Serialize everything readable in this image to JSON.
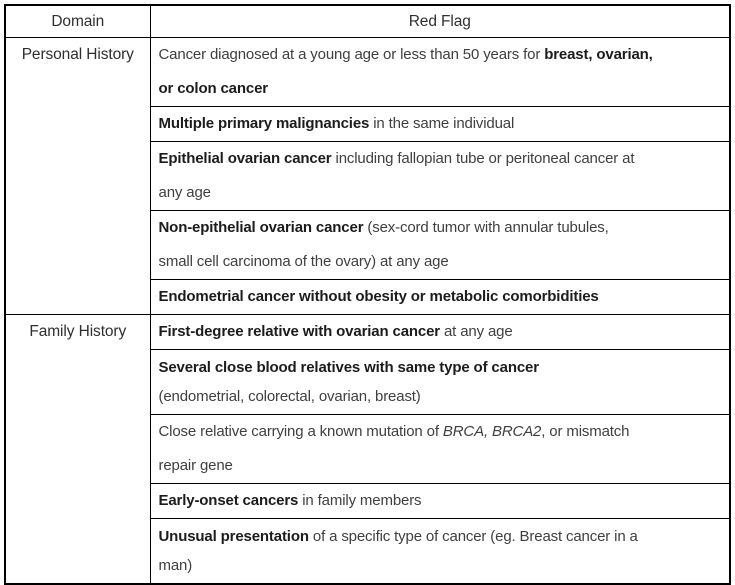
{
  "page": {
    "background_color": "#ffffff",
    "border_color": "#000000",
    "text_color": "#3f3f3f",
    "bold_text_color": "#1c1c1c"
  },
  "table": {
    "headers": {
      "domain": "Domain",
      "red_flag": "Red Flag"
    },
    "sections": [
      {
        "domain": "Personal History",
        "rows": [
          {
            "lines": [
              [
                {
                  "text": "Cancer diagnosed at a young age or less than 50 years for ",
                  "style": "regular"
                },
                {
                  "text": "breast, ovarian,",
                  "style": "bold"
                }
              ],
              [
                {
                  "text": "or colon cancer",
                  "style": "bold"
                }
              ]
            ]
          },
          {
            "lines": [
              [
                {
                  "text": "Multiple primary malignancies",
                  "style": "bold"
                },
                {
                  "text": " in the same individual",
                  "style": "regular"
                }
              ]
            ]
          },
          {
            "lines": [
              [
                {
                  "text": "Epithelial ovarian cancer",
                  "style": "bold"
                },
                {
                  "text": " including fallopian tube or peritoneal cancer at",
                  "style": "regular"
                }
              ],
              [
                {
                  "text": "any age",
                  "style": "regular"
                }
              ]
            ]
          },
          {
            "lines": [
              [
                {
                  "text": "Non-epithelial ovarian cancer",
                  "style": "bold"
                },
                {
                  "text": " (sex-cord tumor with annular tubules,",
                  "style": "regular"
                }
              ],
              [
                {
                  "text": "small cell carcinoma of the ovary) at any age",
                  "style": "regular"
                }
              ]
            ]
          },
          {
            "lines": [
              [
                {
                  "text": "Endometrial cancer without obesity or metabolic comorbidities",
                  "style": "bold"
                }
              ]
            ]
          }
        ]
      },
      {
        "domain": "Family History",
        "rows": [
          {
            "lines": [
              [
                {
                  "text": "First-degree relative with ovarian cancer",
                  "style": "bold"
                },
                {
                  "text": " at any age",
                  "style": "regular"
                }
              ]
            ]
          },
          {
            "lines": [
              [
                {
                  "text": "Several close blood relatives with same type of cancer",
                  "style": "bold"
                }
              ],
              [
                {
                  "text": "(endometrial, colorectal, ovarian, breast)",
                  "style": "regular"
                }
              ]
            ]
          },
          {
            "lines": [
              [
                {
                  "text": "Close relative carrying a known mutation of ",
                  "style": "regular"
                },
                {
                  "text": "BRCA, BRCA2",
                  "style": "italic"
                },
                {
                  "text": ", or mismatch",
                  "style": "regular"
                }
              ],
              [
                {
                  "text": "repair gene",
                  "style": "regular"
                }
              ]
            ]
          },
          {
            "lines": [
              [
                {
                  "text": "Early-onset cancers",
                  "style": "bold"
                },
                {
                  "text": " in family members",
                  "style": "regular"
                }
              ]
            ]
          },
          {
            "lines": [
              [
                {
                  "text": "Unusual presentation",
                  "style": "bold"
                },
                {
                  "text": " of a specific type of cancer (eg. Breast cancer in a",
                  "style": "regular"
                }
              ],
              [
                {
                  "text": "man)",
                  "style": "regular"
                }
              ]
            ]
          }
        ]
      }
    ]
  }
}
